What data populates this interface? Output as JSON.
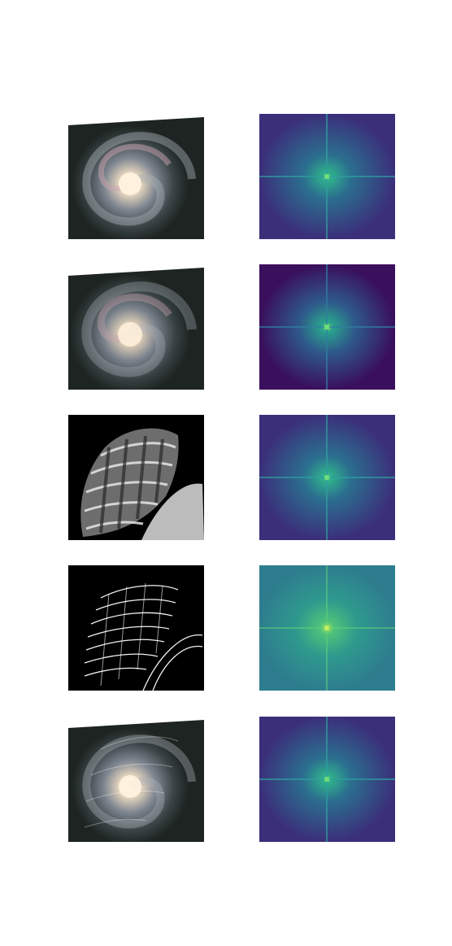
{
  "figure": {
    "rows": [
      {
        "image": "galaxy-photo",
        "spectrum": "fft-magnitude-spectrum"
      },
      {
        "image": "galaxy-photo-blurred",
        "spectrum": "fft-magnitude-spectrum-low"
      },
      {
        "image": "seashell-grayscale",
        "spectrum": "fft-magnitude-spectrum"
      },
      {
        "image": "seashell-edges",
        "spectrum": "fft-magnitude-spectrum-high"
      },
      {
        "image": "galaxy-shell-hybrid",
        "spectrum": "fft-magnitude-spectrum"
      }
    ],
    "colors": {
      "spectrum_bg": "#3b2f7a",
      "spectrum_low_bg": "#3a0f5c",
      "spectrum_high_bg": "#2e7d8e",
      "spectrum_axis": "#2f9ea0",
      "spectrum_center": "#6fe07a",
      "galaxy_bg": "#1d2421",
      "shell_bg": "#000000"
    }
  }
}
